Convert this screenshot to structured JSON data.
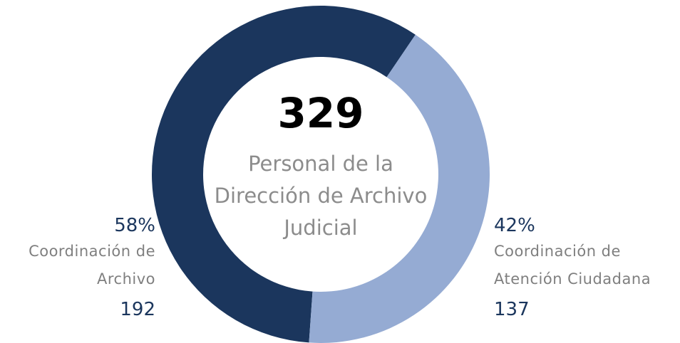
{
  "chart_data": {
    "type": "donut",
    "total": 329,
    "center_label": "Personal de la Dirección de Archivo Judicial",
    "categories": [
      "Coordinación de Archivo",
      "Coordinación de Atención Ciudadana"
    ],
    "values": [
      192,
      137
    ],
    "percentages": [
      58,
      42
    ],
    "percentage_labels": [
      "58%",
      "42%"
    ],
    "colors": [
      "#1b365d",
      "#95abd3"
    ]
  }
}
